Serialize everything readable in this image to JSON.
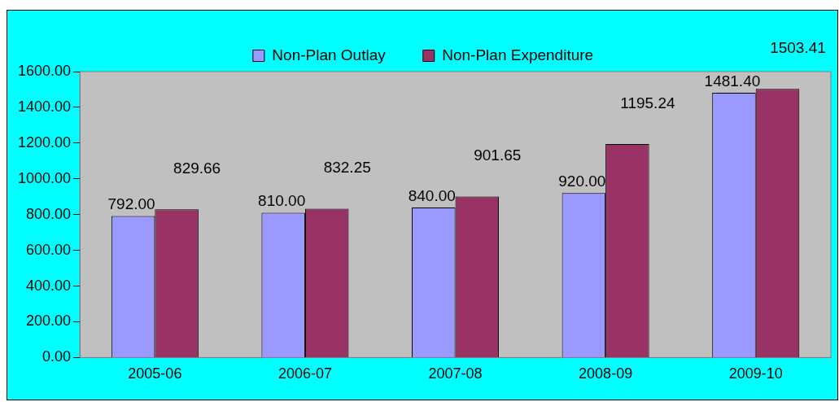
{
  "chart_data": {
    "type": "bar",
    "categories": [
      "2005-06",
      "2006-07",
      "2007-08",
      "2008-09",
      "2009-10"
    ],
    "series": [
      {
        "name": "Non-Plan Outlay",
        "color": "#9999ff",
        "values": [
          792.0,
          810.0,
          840.0,
          920.0,
          1481.4
        ],
        "value_labels": [
          "792.00",
          "810.00",
          "840.00",
          "920.00",
          "1481.40"
        ]
      },
      {
        "name": "Non-Plan Expenditure",
        "color": "#993366",
        "values": [
          829.66,
          832.25,
          901.65,
          1195.24,
          1503.41
        ],
        "value_labels": [
          "829.66",
          "832.25",
          "901.65",
          "1195.24",
          "1503.41"
        ]
      }
    ],
    "ylim": [
      0,
      1600
    ],
    "yticks": [
      {
        "value": 0,
        "label": "0.00"
      },
      {
        "value": 200,
        "label": "200.00"
      },
      {
        "value": 400,
        "label": "400.00"
      },
      {
        "value": 600,
        "label": "600.00"
      },
      {
        "value": 800,
        "label": "800.00"
      },
      {
        "value": 1000,
        "label": "1000.00"
      },
      {
        "value": 1200,
        "label": "1200.00"
      },
      {
        "value": 1400,
        "label": "1400.00"
      },
      {
        "value": 1600,
        "label": "1600.00"
      }
    ],
    "grid": false,
    "legend": "top"
  }
}
